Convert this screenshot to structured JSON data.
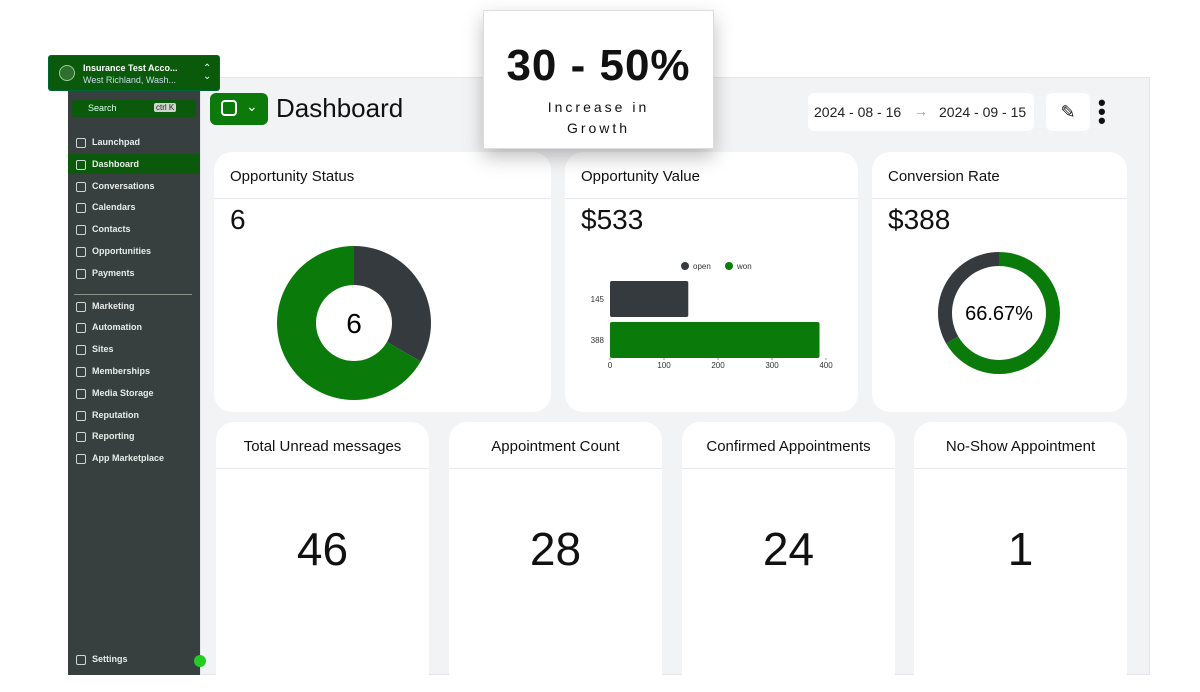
{
  "account": {
    "name": "Insurance Test Acco...",
    "location": "West Richland, Wash..."
  },
  "sidebar": {
    "search": "Search",
    "shortcut": "ctrl K",
    "items": [
      "Launchpad",
      "Dashboard",
      "Conversations",
      "Calendars",
      "Contacts",
      "Opportunities",
      "Payments",
      "Marketing",
      "Automation",
      "Sites",
      "Memberships",
      "Media Storage",
      "Reputation",
      "Reporting",
      "App Marketplace"
    ],
    "active": 1,
    "settings": "Settings"
  },
  "header": {
    "title": "Dashboard",
    "date_start": "2024 - 08 - 16",
    "date_end": "2024 - 09 - 15"
  },
  "promo": {
    "headline": "30 - 50%",
    "caption": "Increase in Growth"
  },
  "opportunity_status": {
    "title": "Opportunity Status",
    "total": 6,
    "segments": [
      {
        "color": "#343a3d",
        "value": 2
      },
      {
        "color": "#0a7a0a",
        "value": 4
      }
    ]
  },
  "opportunity_value": {
    "title": "Opportunity Value",
    "amount": "$533",
    "chart": {
      "type": "bar",
      "series": [
        {
          "name": "open",
          "color": "#343a3d",
          "value": 145
        },
        {
          "name": "won",
          "color": "#0a7a0a",
          "value": 388
        }
      ],
      "xlim": [
        0,
        400
      ],
      "xticks": [
        0,
        100,
        200,
        300,
        400
      ]
    }
  },
  "conversion_rate": {
    "title": "Conversion Rate",
    "amount": "$388",
    "rate": 66.67,
    "rate_label": "66.67%",
    "rate_color": "#0a7a0a",
    "rest_color": "#343a3d"
  },
  "counters": [
    {
      "title": "Total Unread messages",
      "value": 46
    },
    {
      "title": "Appointment Count",
      "value": 28
    },
    {
      "title": "Confirmed Appointments",
      "value": 24
    },
    {
      "title": "No-Show Appointment",
      "value": 1
    }
  ]
}
